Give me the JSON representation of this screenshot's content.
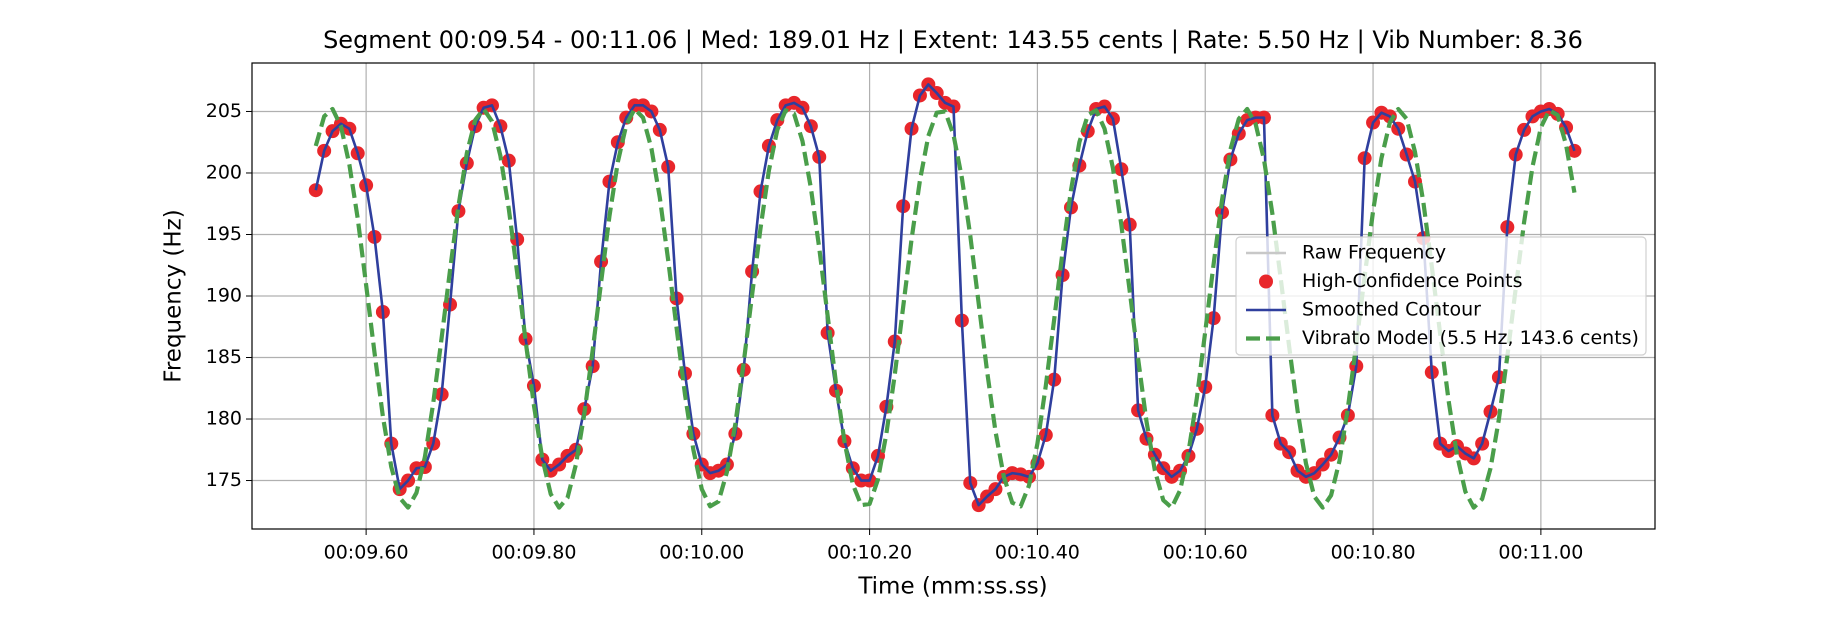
{
  "chart_data": {
    "type": "line",
    "title": "Segment 00:09.54 - 00:11.06 | Med: 189.01 Hz | Extent: 143.55 cents | Rate: 5.50 Hz | Vib Number: 8.36",
    "xlabel": "Time (mm:ss.ss)",
    "ylabel": "Frequency (Hz)",
    "x": [
      9.54,
      9.55,
      9.56,
      9.57,
      9.58,
      9.59,
      9.6,
      9.61,
      9.62,
      9.63,
      9.64,
      9.65,
      9.66,
      9.67,
      9.68,
      9.69,
      9.7,
      9.71,
      9.72,
      9.73,
      9.74,
      9.75,
      9.76,
      9.77,
      9.78,
      9.79,
      9.8,
      9.81,
      9.82,
      9.83,
      9.84,
      9.85,
      9.86,
      9.87,
      9.88,
      9.89,
      9.9,
      9.91,
      9.92,
      9.93,
      9.94,
      9.95,
      9.96,
      9.97,
      9.98,
      9.99,
      10.0,
      10.01,
      10.02,
      10.03,
      10.04,
      10.05,
      10.06,
      10.07,
      10.08,
      10.09,
      10.1,
      10.11,
      10.12,
      10.13,
      10.14,
      10.15,
      10.16,
      10.17,
      10.18,
      10.19,
      10.2,
      10.21,
      10.22,
      10.23,
      10.24,
      10.25,
      10.26,
      10.27,
      10.28,
      10.29,
      10.3,
      10.31,
      10.32,
      10.33,
      10.34,
      10.35,
      10.36,
      10.37,
      10.38,
      10.39,
      10.4,
      10.41,
      10.42,
      10.43,
      10.44,
      10.45,
      10.46,
      10.47,
      10.48,
      10.49,
      10.5,
      10.51,
      10.52,
      10.53,
      10.54,
      10.55,
      10.56,
      10.57,
      10.58,
      10.59,
      10.6,
      10.61,
      10.62,
      10.63,
      10.64,
      10.65,
      10.66,
      10.67,
      10.68,
      10.69,
      10.7,
      10.71,
      10.72,
      10.73,
      10.74,
      10.75,
      10.76,
      10.77,
      10.78,
      10.79,
      10.8,
      10.81,
      10.82,
      10.83,
      10.84,
      10.85,
      10.86,
      10.87,
      10.88,
      10.89,
      10.9,
      10.91,
      10.92,
      10.93,
      10.94,
      10.95,
      10.96,
      10.97,
      10.98,
      10.99,
      11.0,
      11.01,
      11.02,
      11.03,
      11.04
    ],
    "series": [
      {
        "name": "Raw Frequency",
        "kind": "line",
        "color": "#c8c8c8",
        "values": [
          198.6,
          201.8,
          203.4,
          204.0,
          203.6,
          201.6,
          199.0,
          194.8,
          188.7,
          178.0,
          174.3,
          175.0,
          176.0,
          176.1,
          178.0,
          182.0,
          189.3,
          196.9,
          200.8,
          203.8,
          205.3,
          205.5,
          203.8,
          201.0,
          194.6,
          186.5,
          182.7,
          176.7,
          175.8,
          176.3,
          177.0,
          177.5,
          180.8,
          184.3,
          192.8,
          199.3,
          202.5,
          204.5,
          205.5,
          205.5,
          205.0,
          203.5,
          200.5,
          189.8,
          183.7,
          178.8,
          176.3,
          175.6,
          175.8,
          176.3,
          178.8,
          184.0,
          192.0,
          198.5,
          202.2,
          204.3,
          205.5,
          205.7,
          205.3,
          203.8,
          201.3,
          187.0,
          182.3,
          178.2,
          176.0,
          175.0,
          175.0,
          177.0,
          181.0,
          186.3,
          197.3,
          203.6,
          206.3,
          207.2,
          206.5,
          205.7,
          205.4,
          188.0,
          174.8,
          173.0,
          173.7,
          174.3,
          175.3,
          175.6,
          175.5,
          175.3,
          176.4,
          178.7,
          183.2,
          191.7,
          197.2,
          200.6,
          203.4,
          205.2,
          205.4,
          204.4,
          200.3,
          195.8,
          180.7,
          178.4,
          177.1,
          176.0,
          175.3,
          175.8,
          177.0,
          179.2,
          182.6,
          188.2,
          196.8,
          201.1,
          203.2,
          204.3,
          204.5,
          204.5,
          180.3,
          178.0,
          177.3,
          175.8,
          175.3,
          175.6,
          176.3,
          177.1,
          178.5,
          180.3,
          184.3,
          201.2,
          204.1,
          204.9,
          204.6,
          203.6,
          201.5,
          199.3,
          194.7,
          183.8,
          178.0,
          177.4,
          177.8,
          177.2,
          176.8,
          178.0,
          180.6,
          183.4,
          195.6,
          201.5,
          203.5,
          204.6,
          205.0,
          205.2,
          204.8,
          203.7,
          201.8
        ]
      },
      {
        "name": "High-Confidence Points",
        "kind": "scatter",
        "color": "#e8262b",
        "values": [
          198.6,
          201.8,
          203.4,
          204.0,
          203.6,
          201.6,
          199.0,
          194.8,
          188.7,
          178.0,
          174.3,
          175.0,
          176.0,
          176.1,
          178.0,
          182.0,
          189.3,
          196.9,
          200.8,
          203.8,
          205.3,
          205.5,
          203.8,
          201.0,
          194.6,
          186.5,
          182.7,
          176.7,
          175.8,
          176.3,
          177.0,
          177.5,
          180.8,
          184.3,
          192.8,
          199.3,
          202.5,
          204.5,
          205.5,
          205.5,
          205.0,
          203.5,
          200.5,
          189.8,
          183.7,
          178.8,
          176.3,
          175.6,
          175.8,
          176.3,
          178.8,
          184.0,
          192.0,
          198.5,
          202.2,
          204.3,
          205.5,
          205.7,
          205.3,
          203.8,
          201.3,
          187.0,
          182.3,
          178.2,
          176.0,
          175.0,
          175.0,
          177.0,
          181.0,
          186.3,
          197.3,
          203.6,
          206.3,
          207.2,
          206.5,
          205.7,
          205.4,
          188.0,
          174.8,
          173.0,
          173.7,
          174.3,
          175.3,
          175.6,
          175.5,
          175.3,
          176.4,
          178.7,
          183.2,
          191.7,
          197.2,
          200.6,
          203.4,
          205.2,
          205.4,
          204.4,
          200.3,
          195.8,
          180.7,
          178.4,
          177.1,
          176.0,
          175.3,
          175.8,
          177.0,
          179.2,
          182.6,
          188.2,
          196.8,
          201.1,
          203.2,
          204.3,
          204.5,
          204.5,
          180.3,
          178.0,
          177.3,
          175.8,
          175.3,
          175.6,
          176.3,
          177.1,
          178.5,
          180.3,
          184.3,
          201.2,
          204.1,
          204.9,
          204.6,
          203.6,
          201.5,
          199.3,
          194.7,
          183.8,
          178.0,
          177.4,
          177.8,
          177.2,
          176.8,
          178.0,
          180.6,
          183.4,
          195.6,
          201.5,
          203.5,
          204.6,
          205.0,
          205.2,
          204.8,
          203.7,
          201.8
        ]
      },
      {
        "name": "Smoothed Contour",
        "kind": "line",
        "color": "#2f3f9e",
        "values": [
          198.6,
          201.8,
          203.4,
          204.0,
          203.6,
          201.6,
          199.0,
          194.8,
          188.7,
          178.0,
          174.3,
          175.0,
          176.0,
          176.1,
          178.0,
          182.0,
          189.3,
          196.9,
          200.8,
          203.8,
          205.3,
          205.5,
          203.8,
          201.0,
          194.6,
          186.5,
          182.7,
          176.7,
          175.8,
          176.3,
          177.0,
          177.5,
          180.8,
          184.3,
          192.8,
          199.3,
          202.5,
          204.5,
          205.5,
          205.5,
          205.0,
          203.5,
          200.5,
          189.8,
          183.7,
          178.8,
          176.3,
          175.6,
          175.8,
          176.3,
          178.8,
          184.0,
          192.0,
          198.5,
          202.2,
          204.3,
          205.5,
          205.7,
          205.3,
          203.8,
          201.3,
          187.0,
          182.3,
          178.2,
          176.0,
          175.0,
          175.0,
          177.0,
          181.0,
          186.3,
          197.3,
          203.6,
          206.3,
          207.2,
          206.5,
          205.7,
          205.4,
          188.0,
          174.8,
          173.0,
          173.7,
          174.3,
          175.3,
          175.6,
          175.5,
          175.3,
          176.4,
          178.7,
          183.2,
          191.7,
          197.2,
          200.6,
          203.4,
          205.2,
          205.4,
          204.4,
          200.3,
          195.8,
          180.7,
          178.4,
          177.1,
          176.0,
          175.3,
          175.8,
          177.0,
          179.2,
          182.6,
          188.2,
          196.8,
          201.1,
          203.2,
          204.3,
          204.5,
          204.5,
          180.3,
          178.0,
          177.3,
          175.8,
          175.3,
          175.6,
          176.3,
          177.1,
          178.5,
          180.3,
          184.3,
          201.2,
          204.1,
          204.9,
          204.6,
          203.6,
          201.5,
          199.3,
          194.7,
          183.8,
          178.0,
          177.4,
          177.8,
          177.2,
          176.8,
          178.0,
          180.6,
          183.4,
          195.6,
          201.5,
          203.5,
          204.6,
          205.0,
          205.2,
          204.8,
          203.7,
          201.8
        ]
      },
      {
        "name": "Vibrato Model (5.5 Hz, 143.6 cents)",
        "kind": "dashed",
        "color": "#4a9e4a",
        "values": [
          202.2,
          204.6,
          205.2,
          203.8,
          200.7,
          196.3,
          190.9,
          185.4,
          180.2,
          176.1,
          173.6,
          172.8,
          174.0,
          176.9,
          181.3,
          186.6,
          192.1,
          197.3,
          201.6,
          204.3,
          205.2,
          204.2,
          201.4,
          197.1,
          191.9,
          186.4,
          181.1,
          176.8,
          173.9,
          172.8,
          173.6,
          176.3,
          180.4,
          185.6,
          191.1,
          196.5,
          200.9,
          203.9,
          205.2,
          204.5,
          202.0,
          198.0,
          192.9,
          187.4,
          182.0,
          177.5,
          174.3,
          172.9,
          173.3,
          175.7,
          179.6,
          184.6,
          190.1,
          195.5,
          200.2,
          203.5,
          205.1,
          204.8,
          202.6,
          198.8,
          193.9,
          188.4,
          182.9,
          178.2,
          174.7,
          173.0,
          173.1,
          175.1,
          178.8,
          183.6,
          189.1,
          194.6,
          199.4,
          203.0,
          204.9,
          205.0,
          203.1,
          199.6,
          194.9,
          189.4,
          183.9,
          179.0,
          175.3,
          173.2,
          172.9,
          174.6,
          178.0,
          182.7,
          188.1,
          193.6,
          198.6,
          202.5,
          204.7,
          205.1,
          203.6,
          200.4,
          195.8,
          190.4,
          184.9,
          179.8,
          175.8,
          173.4,
          172.8,
          174.2,
          177.3,
          181.7,
          187.1,
          192.6,
          197.8,
          201.9,
          204.4,
          205.2,
          204.0,
          201.1,
          196.7,
          191.4,
          185.9,
          180.7,
          176.4,
          173.7,
          172.8,
          173.8,
          176.6,
          180.9,
          186.1,
          191.6,
          196.9,
          201.2,
          204.1,
          205.2,
          204.4,
          201.7,
          197.6,
          192.4,
          186.9,
          181.5,
          177.1,
          174.1,
          172.8,
          173.5,
          176.0,
          180.0,
          185.1,
          190.6,
          196.0,
          200.5,
          203.7,
          205.1,
          204.7,
          202.3,
          198.4
        ]
      }
    ],
    "xlim": [
      9.464,
      11.136
    ],
    "ylim": [
      171.06,
      208.94
    ],
    "xticks": [
      {
        "value": 9.6,
        "label": "00:09.60"
      },
      {
        "value": 9.8,
        "label": "00:09.80"
      },
      {
        "value": 10.0,
        "label": "00:10.00"
      },
      {
        "value": 10.2,
        "label": "00:10.20"
      },
      {
        "value": 10.4,
        "label": "00:10.40"
      },
      {
        "value": 10.6,
        "label": "00:10.60"
      },
      {
        "value": 10.8,
        "label": "00:10.80"
      },
      {
        "value": 11.0,
        "label": "00:11.00"
      }
    ],
    "yticks": [
      175,
      180,
      185,
      190,
      195,
      200,
      205
    ],
    "grid": true,
    "legend": "center right"
  }
}
